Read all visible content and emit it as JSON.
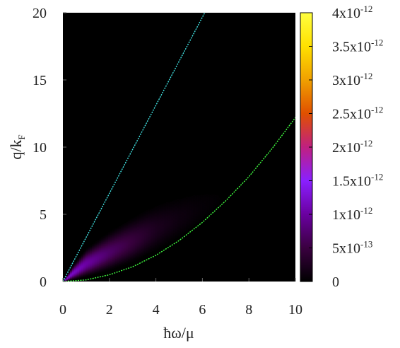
{
  "chart_data": {
    "type": "heatmap",
    "xlabel": "ħω/μ",
    "ylabel_main": "q/k",
    "ylabel_sub": "F",
    "xlim": [
      0,
      10
    ],
    "ylim": [
      0,
      20
    ],
    "x_ticks": [
      "0",
      "2",
      "4",
      "6",
      "8",
      "10"
    ],
    "y_ticks": [
      "0",
      "5",
      "10",
      "15",
      "20"
    ],
    "grid": false,
    "colorbar": {
      "range": [
        0,
        4e-12
      ],
      "ticks": [
        {
          "value": 0,
          "mant": "0",
          "exp": ""
        },
        {
          "value": 5e-13,
          "mant": "5x10",
          "exp": "-13"
        },
        {
          "value": 1e-12,
          "mant": "1x10",
          "exp": "-12"
        },
        {
          "value": 1.5e-12,
          "mant": "1.5x10",
          "exp": "-12"
        },
        {
          "value": 2e-12,
          "mant": "2x10",
          "exp": "-12"
        },
        {
          "value": 2.5e-12,
          "mant": "2.5x10",
          "exp": "-12"
        },
        {
          "value": 3e-12,
          "mant": "3x10",
          "exp": "-12"
        },
        {
          "value": 3.5e-12,
          "mant": "3.5x10",
          "exp": "-12"
        },
        {
          "value": 4e-12,
          "mant": "4x10",
          "exp": "-12"
        }
      ],
      "colors": [
        "#000000",
        "#3a0040",
        "#6a00a0",
        "#8a20ff",
        "#c02080",
        "#e05000",
        "#f0a000",
        "#ffe000",
        "#ffff40"
      ]
    },
    "curves": [
      {
        "color": "#40e0e0",
        "x": [
          0,
          6.1
        ],
        "y": [
          0,
          20
        ]
      },
      {
        "color": "#40ff40",
        "x": [
          0,
          1,
          2,
          3,
          4,
          5,
          6,
          7,
          8,
          9,
          10
        ],
        "y": [
          0,
          0.12,
          0.5,
          1.1,
          1.95,
          3.05,
          4.4,
          6.0,
          7.8,
          9.9,
          12.2
        ]
      }
    ],
    "heatmap_band": {
      "x": [
        0,
        0.5,
        1,
        2,
        3,
        4,
        5,
        6,
        7
      ],
      "y_low": [
        0,
        0.15,
        0.35,
        0.8,
        1.4,
        2.2,
        3.1,
        4.2,
        5.3
      ],
      "y_high": [
        0,
        1.4,
        2.5,
        3.8,
        4.9,
        5.9,
        6.6,
        7.2,
        7.6
      ],
      "peak": [
        1.6e-12,
        1.5e-12,
        1.3e-12,
        9e-13,
        6e-13,
        3e-13,
        1.5e-13,
        6e-14,
        2e-14
      ]
    }
  }
}
